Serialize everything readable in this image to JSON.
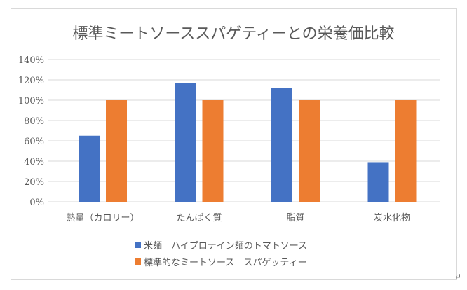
{
  "chart_data": {
    "type": "bar",
    "title": "標準ミートソーススパゲティーとの栄養価比較",
    "categories": [
      "熱量（カロリー）",
      "たんぱく質",
      "脂質",
      "炭水化物"
    ],
    "series": [
      {
        "name": "米麺　ハイプロテイン麺のトマトソース",
        "values": [
          65,
          117,
          112,
          39
        ],
        "color": "#4472c4"
      },
      {
        "name": "標準的なミートソース　スパゲッティー",
        "values": [
          100,
          100,
          100,
          100
        ],
        "color": "#ed7d31"
      }
    ],
    "yticks": [
      "0%",
      "20%",
      "40%",
      "60%",
      "80%",
      "100%",
      "120%",
      "140%"
    ],
    "ylim": [
      0,
      140
    ],
    "unit": "%",
    "grid": true,
    "legend": "bottom"
  },
  "page": {
    "return_mark": "↵"
  }
}
